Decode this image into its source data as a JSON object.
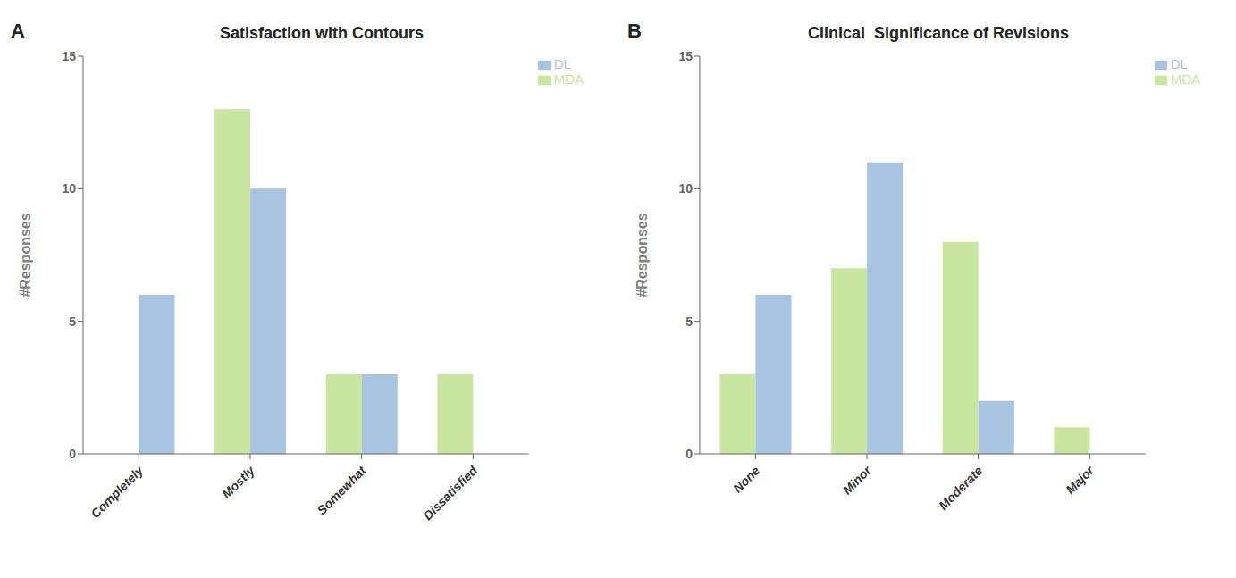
{
  "chart_data": [
    {
      "type": "bar",
      "title": "Satisfaction with Contours",
      "annotations": [
        "A"
      ],
      "categories": [
        "Completely",
        "Mostly",
        "Somewhat",
        "Dissatisfied"
      ],
      "series": [
        {
          "name": "MDA",
          "color": "#c8e6a0",
          "values": [
            null,
            13,
            3,
            3
          ]
        },
        {
          "name": "DL",
          "color": "#a8c4e0",
          "values": [
            6,
            10,
            3,
            null
          ]
        }
      ],
      "ylabel": "#Responses",
      "ylim": [
        0,
        15
      ],
      "yticks": [
        0,
        5,
        10,
        15
      ],
      "grid": false,
      "legend": "upper right"
    },
    {
      "type": "bar",
      "title": "Clinical  Significance of Revisions",
      "annotations": [
        "B"
      ],
      "categories": [
        "None",
        "Minor",
        "Moderate",
        "Major"
      ],
      "series": [
        {
          "name": "MDA",
          "color": "#c8e6a0",
          "values": [
            3,
            7,
            8,
            1
          ]
        },
        {
          "name": "DL",
          "color": "#a8c4e0",
          "values": [
            6,
            11,
            2,
            null
          ]
        }
      ],
      "ylabel": "#Responses",
      "ylim": [
        0,
        15
      ],
      "yticks": [
        0,
        5,
        10,
        15
      ],
      "grid": false,
      "legend": "upper right"
    }
  ]
}
